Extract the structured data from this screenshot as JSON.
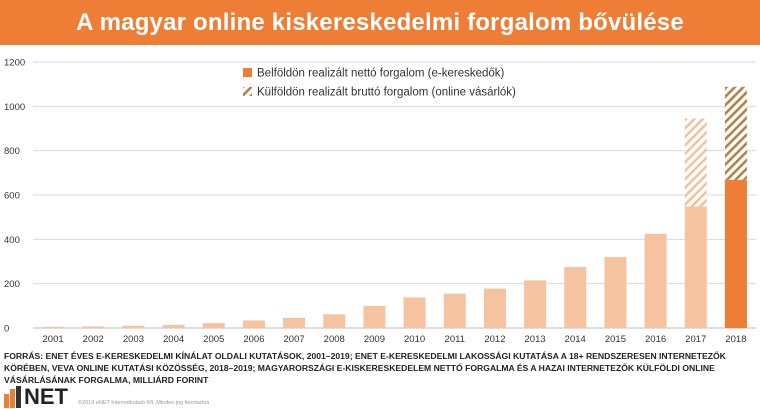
{
  "header": {
    "title": "A magyar online kiskereskedelmi forgalom bővülése"
  },
  "chart_data": {
    "type": "bar",
    "title": "A magyar online kiskereskedelmi forgalom bővülése",
    "categories": [
      "2001",
      "2002",
      "2003",
      "2004",
      "2005",
      "2006",
      "2007",
      "2008",
      "2009",
      "2010",
      "2011",
      "2012",
      "2013",
      "2014",
      "2015",
      "2016",
      "2017",
      "2018"
    ],
    "series": [
      {
        "name": "Belföldön realizált nettó forgalom (e-kereskedők)",
        "values": [
          5,
          7,
          10,
          14,
          22,
          34,
          46,
          62,
          100,
          138,
          155,
          178,
          215,
          275,
          320,
          425,
          548,
          668
        ]
      },
      {
        "name": "Külföldön realizált bruttó forgalom (online vásárlók)",
        "values": [
          null,
          null,
          null,
          null,
          null,
          null,
          null,
          null,
          null,
          null,
          null,
          null,
          null,
          null,
          null,
          null,
          397,
          420
        ]
      }
    ],
    "stacked": true,
    "ylim": [
      0,
      1200
    ],
    "yticks": [
      0,
      200,
      400,
      600,
      800,
      1000,
      1200
    ],
    "grid": true,
    "legend_position": "top-center",
    "colors": {
      "light_bar": "#f6c3a1",
      "highlight_bar": "#ee7e35",
      "hatch_light": "#f2bf9c",
      "hatch_dark": "#b3814a",
      "grid": "#d9d9d9",
      "axis_text": "#333333"
    }
  },
  "source": {
    "text": "FORRÁS: ENET ÉVES E-KERESKEDELMI KÍNÁLAT OLDALI KUTATÁSOK, 2001–2019; ENET E-KERESKEDELMI LAKOSSÁGI KUTATÁSA A 18+ RENDSZERESEN INTERNETEZŐK KÖRÉBEN, VEVA ONLINE KUTATÁSI KÖZÖSSÉG, 2018–2019; MAGYARORSZÁGI E-KISKERESKEDELEM NETTÓ FORGALMA ÉS A HAZAI INTERNETEZŐK KÜLFÖLDI ONLINE VÁSÁRLÁSÁNAK FORGALMA, MILLIÁRD FORINT"
  },
  "footer": {
    "logo_text": "NET",
    "copyright": "©2019 eNET Internetkutató Kft. Minden jog fenntartva"
  }
}
